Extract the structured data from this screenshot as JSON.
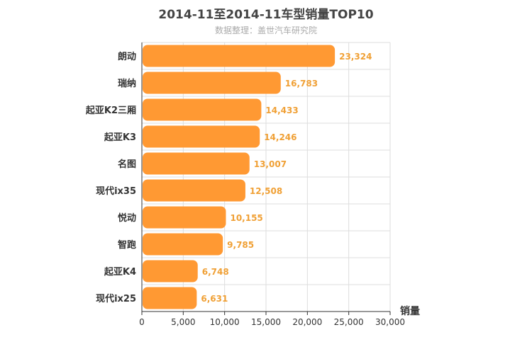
{
  "chart_data": {
    "type": "bar",
    "orientation": "horizontal",
    "title": "2014-11至2014-11车型销量TOP10",
    "subtitle": "数据整理：盖世汽车研究院",
    "categories": [
      "朗动",
      "瑞纳",
      "起亚K2三厢",
      "起亚K3",
      "名图",
      "现代ix35",
      "悦动",
      "智跑",
      "起亚K4",
      "现代ix25"
    ],
    "values": [
      23324,
      16783,
      14433,
      14246,
      13007,
      12508,
      10155,
      9785,
      6748,
      6631
    ],
    "value_labels": [
      "23,324",
      "16,783",
      "14,433",
      "14,246",
      "13,007",
      "12,508",
      "10,155",
      "9,785",
      "6,748",
      "6,631"
    ],
    "xlabel": "销量",
    "ylabel": "",
    "xlim": [
      0,
      30000
    ],
    "x_ticks": [
      0,
      5000,
      10000,
      15000,
      20000,
      25000,
      30000
    ],
    "x_tick_labels": [
      "0",
      "5,000",
      "10,000",
      "15,000",
      "20,000",
      "25,000",
      "30,000"
    ],
    "grid": true,
    "bar_color": "#ff9933",
    "label_color": "#f0a035"
  }
}
